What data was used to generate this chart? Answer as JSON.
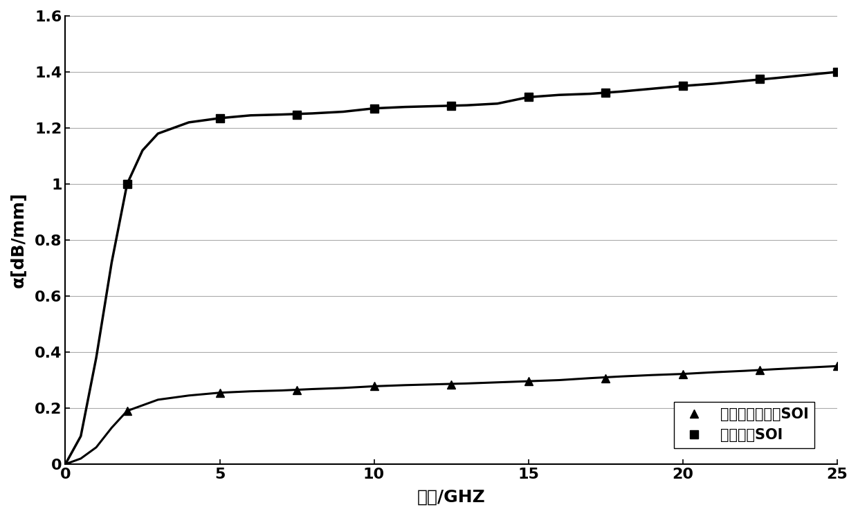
{
  "title": "",
  "xlabel": "频率/GHZ",
  "ylabel": "α[dB/mm]",
  "xlim": [
    0,
    25
  ],
  "ylim": [
    0,
    1.6
  ],
  "yticks": [
    0,
    0.2,
    0.4,
    0.6,
    0.8,
    1.0,
    1.2,
    1.4,
    1.6
  ],
  "xticks": [
    0,
    5,
    10,
    15,
    20,
    25
  ],
  "legend1_label": "本发明做衬底的SOI",
  "legend2_label": "其它衬底SOI",
  "line_color": "#000000",
  "series1_x": [
    0,
    0.5,
    1,
    1.5,
    2,
    3,
    4,
    5,
    6,
    7,
    8,
    9,
    10,
    11,
    12,
    13,
    14,
    15,
    16,
    17,
    18,
    19,
    20,
    21,
    22,
    23,
    25
  ],
  "series1_y": [
    0,
    0.02,
    0.06,
    0.13,
    0.19,
    0.23,
    0.245,
    0.255,
    0.26,
    0.263,
    0.268,
    0.272,
    0.278,
    0.282,
    0.285,
    0.288,
    0.292,
    0.296,
    0.3,
    0.307,
    0.313,
    0.318,
    0.322,
    0.328,
    0.333,
    0.339,
    0.35
  ],
  "series1_markers_x": [
    2,
    5,
    7.5,
    10,
    12.5,
    15,
    17.5,
    20,
    22.5,
    25
  ],
  "series1_markers_y": [
    0.19,
    0.255,
    0.265,
    0.278,
    0.284,
    0.296,
    0.307,
    0.322,
    0.335,
    0.35
  ],
  "series2_x": [
    0,
    0.5,
    1,
    1.5,
    2,
    2.5,
    3,
    4,
    5,
    6,
    7,
    8,
    9,
    10,
    11,
    12,
    13,
    14,
    15,
    16,
    17,
    18,
    19,
    20,
    21,
    22,
    23,
    25
  ],
  "series2_y": [
    0,
    0.1,
    0.38,
    0.72,
    1.0,
    1.12,
    1.18,
    1.22,
    1.235,
    1.245,
    1.248,
    1.252,
    1.258,
    1.27,
    1.275,
    1.278,
    1.281,
    1.287,
    1.31,
    1.318,
    1.322,
    1.33,
    1.34,
    1.35,
    1.358,
    1.368,
    1.378,
    1.4
  ],
  "series2_markers_x": [
    2,
    5,
    7.5,
    10,
    12.5,
    15,
    17.5,
    20,
    22.5,
    25
  ],
  "series2_markers_y": [
    1.0,
    1.235,
    1.248,
    1.27,
    1.278,
    1.31,
    1.326,
    1.35,
    1.375,
    1.4
  ],
  "background_color": "#ffffff",
  "grid_color": "#aaaaaa"
}
